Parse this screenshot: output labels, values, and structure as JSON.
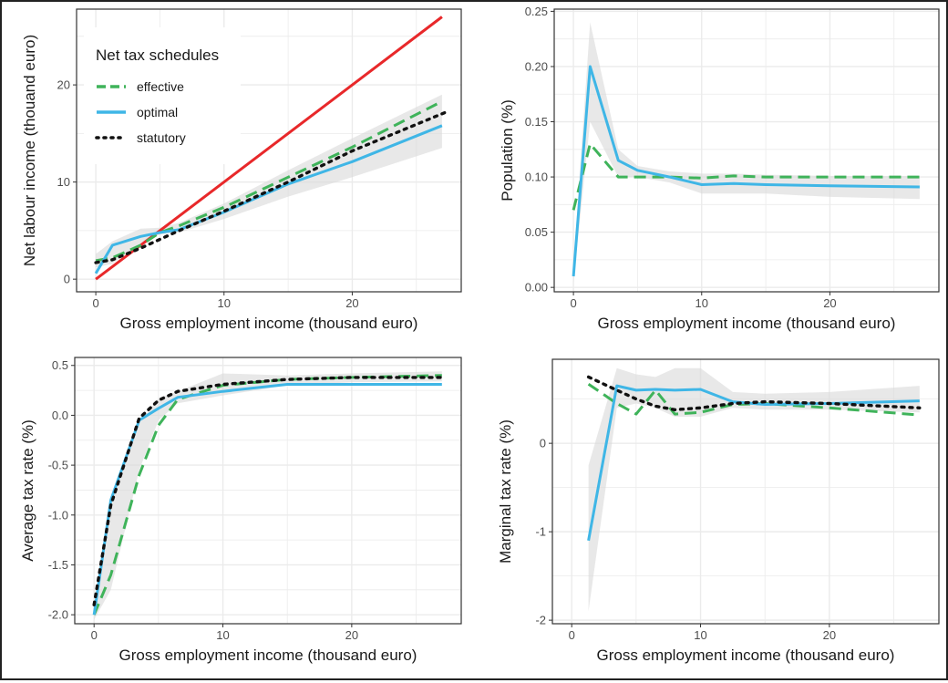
{
  "colors": {
    "effective": "#3fb35a",
    "optimal": "#3fb6e6",
    "statutory": "#111111",
    "reference": "#e8282a",
    "band": "#d9d9d9",
    "grid": "#ebebeb",
    "panel_border": "#333333"
  },
  "legend": {
    "title": "Net tax schedules",
    "items": [
      {
        "key": "effective",
        "label": "effective"
      },
      {
        "key": "optimal",
        "label": "optimal"
      },
      {
        "key": "statutory",
        "label": "statutory"
      }
    ]
  },
  "chart_data": [
    {
      "id": "net-income",
      "type": "line",
      "xlabel": "Gross employment income (thousand euro)",
      "ylabel": "Net labour income (thouand euro)",
      "xlim": [
        -1.5,
        28.5
      ],
      "ylim": [
        -1.3,
        27.8
      ],
      "xticks": [
        {
          "v": 0,
          "label": "0"
        },
        {
          "v": 10,
          "label": "10"
        },
        {
          "v": 20,
          "label": "20"
        }
      ],
      "yticks": [
        {
          "v": 0,
          "label": "0"
        },
        {
          "v": 10,
          "label": "10"
        },
        {
          "v": 20,
          "label": "20"
        }
      ],
      "legend": true,
      "series": [
        {
          "key": "reference",
          "style": "solid",
          "x": [
            0,
            27
          ],
          "y": [
            0,
            27
          ]
        },
        {
          "key": "effective",
          "style": "dashed",
          "x": [
            0,
            1.3,
            3.5,
            5,
            6.5,
            10,
            15,
            20,
            27
          ],
          "y": [
            1.9,
            2.2,
            3.5,
            4.8,
            5.5,
            7.4,
            10.5,
            13.6,
            18.3
          ]
        },
        {
          "key": "optimal",
          "style": "solid",
          "x": [
            0,
            1.3,
            3.5,
            5,
            6.5,
            10,
            15,
            20,
            27
          ],
          "y": [
            0.6,
            3.5,
            4.4,
            4.8,
            5.1,
            6.9,
            9.8,
            12.1,
            15.8
          ]
        },
        {
          "key": "statutory",
          "style": "dotted",
          "x": [
            0,
            1.3,
            3.5,
            5,
            6.5,
            10,
            15,
            20,
            27.5
          ],
          "y": [
            1.7,
            2.0,
            3.2,
            4.1,
            5.0,
            7.0,
            10.0,
            13.2,
            17.3
          ]
        }
      ],
      "band": {
        "x": [
          0,
          1.3,
          3.5,
          5,
          6.5,
          10,
          15,
          20,
          27
        ],
        "lower": [
          1.2,
          1.6,
          3.7,
          4.6,
          4.8,
          6.2,
          8.5,
          10.5,
          13.5
        ],
        "upper": [
          2.6,
          3.9,
          5.2,
          5.3,
          5.8,
          7.8,
          11.2,
          14.5,
          19.0
        ]
      }
    },
    {
      "id": "population",
      "type": "line",
      "xlabel": "Gross employment income (thousand euro)",
      "ylabel": "Population (%)",
      "xlim": [
        -1.5,
        28.5
      ],
      "ylim": [
        -0.004,
        0.252
      ],
      "xticks": [
        {
          "v": 0,
          "label": "0"
        },
        {
          "v": 10,
          "label": "10"
        },
        {
          "v": 20,
          "label": "20"
        }
      ],
      "yticks": [
        {
          "v": 0,
          "label": "0.00"
        },
        {
          "v": 0.05,
          "label": "0.05"
        },
        {
          "v": 0.1,
          "label": "0.10"
        },
        {
          "v": 0.15,
          "label": "0.15"
        },
        {
          "v": 0.2,
          "label": "0.20"
        },
        {
          "v": 0.25,
          "label": "0.25"
        }
      ],
      "legend": false,
      "series": [
        {
          "key": "effective",
          "style": "dashed",
          "x": [
            0,
            1.3,
            3.5,
            5,
            7.5,
            10,
            12.5,
            15,
            20,
            27
          ],
          "y": [
            0.07,
            0.13,
            0.1,
            0.1,
            0.1,
            0.099,
            0.101,
            0.1,
            0.1,
            0.1
          ]
        },
        {
          "key": "optimal",
          "style": "solid",
          "x": [
            0,
            1.3,
            3.5,
            5,
            7.5,
            10,
            12.5,
            15,
            20,
            27
          ],
          "y": [
            0.01,
            0.2,
            0.115,
            0.106,
            0.1,
            0.093,
            0.094,
            0.093,
            0.092,
            0.091
          ]
        }
      ],
      "band": {
        "x": [
          0,
          1.3,
          3.5,
          5,
          7.5,
          10,
          12.5,
          15,
          20,
          27
        ],
        "lower": [
          0.005,
          0.15,
          0.1,
          0.1,
          0.095,
          0.085,
          0.085,
          0.085,
          0.082,
          0.08
        ],
        "upper": [
          0.02,
          0.24,
          0.125,
          0.11,
          0.105,
          0.103,
          0.103,
          0.102,
          0.101,
          0.101
        ]
      }
    },
    {
      "id": "average-tax-rate",
      "type": "line",
      "xlabel": "Gross employment income (thousand euro)",
      "ylabel": "Average tax rate (%)",
      "xlim": [
        -1.5,
        28.5
      ],
      "ylim": [
        -2.09,
        0.58
      ],
      "xticks": [
        {
          "v": 0,
          "label": "0"
        },
        {
          "v": 10,
          "label": "10"
        },
        {
          "v": 20,
          "label": "20"
        }
      ],
      "yticks": [
        {
          "v": -2,
          "label": "-2.0"
        },
        {
          "v": -1.5,
          "label": "-1.5"
        },
        {
          "v": -1,
          "label": "-1.0"
        },
        {
          "v": -0.5,
          "label": "-0.5"
        },
        {
          "v": 0,
          "label": "0.0"
        },
        {
          "v": 0.5,
          "label": "0.5"
        }
      ],
      "legend": false,
      "series": [
        {
          "key": "effective",
          "style": "dashed",
          "x": [
            0,
            1.3,
            3.5,
            5,
            6.5,
            10,
            15,
            20,
            27
          ],
          "y": [
            -2.0,
            -1.6,
            -0.6,
            -0.1,
            0.16,
            0.3,
            0.36,
            0.38,
            0.4
          ]
        },
        {
          "key": "optimal",
          "style": "solid",
          "x": [
            0,
            1.3,
            3.5,
            5,
            6.5,
            10,
            15,
            20,
            27
          ],
          "y": [
            -2.0,
            -0.85,
            -0.05,
            0.07,
            0.18,
            0.24,
            0.31,
            0.31,
            0.31
          ]
        },
        {
          "key": "statutory",
          "style": "dotted",
          "x": [
            0,
            1.3,
            3.5,
            5,
            6.5,
            10,
            15,
            20,
            27
          ],
          "y": [
            -1.9,
            -0.9,
            -0.03,
            0.15,
            0.24,
            0.31,
            0.36,
            0.38,
            0.38
          ]
        }
      ],
      "band": {
        "x": [
          0,
          1.3,
          3.5,
          5,
          6.5,
          10,
          15,
          20,
          27
        ],
        "lower": [
          -2.05,
          -1.75,
          -0.55,
          -0.05,
          0.12,
          0.2,
          0.3,
          0.33,
          0.34
        ],
        "upper": [
          -1.95,
          -0.85,
          -0.08,
          0.17,
          0.24,
          0.42,
          0.4,
          0.42,
          0.44
        ]
      }
    },
    {
      "id": "marginal-tax-rate",
      "type": "line",
      "xlabel": "Gross employment income (thousand euro)",
      "ylabel": "Marginal tax rate (%)",
      "xlim": [
        -1.5,
        28.5
      ],
      "ylim": [
        -2.04,
        0.95
      ],
      "xticks": [
        {
          "v": 0,
          "label": "0"
        },
        {
          "v": 10,
          "label": "10"
        },
        {
          "v": 20,
          "label": "20"
        }
      ],
      "yticks": [
        {
          "v": -2,
          "label": "-2"
        },
        {
          "v": -1,
          "label": "-1"
        },
        {
          "v": 0,
          "label": "0"
        }
      ],
      "legend": false,
      "series": [
        {
          "key": "effective",
          "style": "dashed",
          "x": [
            1.3,
            3.5,
            5,
            6.5,
            8,
            10,
            12.5,
            15,
            20,
            27
          ],
          "y": [
            0.67,
            0.45,
            0.33,
            0.6,
            0.33,
            0.35,
            0.44,
            0.45,
            0.4,
            0.32
          ]
        },
        {
          "key": "optimal",
          "style": "solid",
          "x": [
            1.3,
            3.5,
            5,
            6.5,
            8,
            10,
            12.5,
            15,
            20,
            27
          ],
          "y": [
            -1.1,
            0.65,
            0.6,
            0.61,
            0.6,
            0.61,
            0.47,
            0.44,
            0.45,
            0.48
          ]
        },
        {
          "key": "statutory",
          "style": "dotted",
          "x": [
            1.3,
            3.5,
            5,
            6.5,
            8,
            10,
            12.5,
            15,
            20,
            27
          ],
          "y": [
            0.75,
            0.6,
            0.5,
            0.42,
            0.38,
            0.4,
            0.45,
            0.47,
            0.45,
            0.4
          ]
        }
      ],
      "band": {
        "x": [
          1.3,
          3.5,
          5,
          6.5,
          8,
          10,
          12.5,
          15,
          20,
          27
        ],
        "lower": [
          -1.9,
          0.4,
          0.45,
          0.4,
          0.3,
          0.3,
          0.4,
          0.38,
          0.38,
          0.35
        ],
        "upper": [
          -0.25,
          0.85,
          0.78,
          0.75,
          0.85,
          0.85,
          0.58,
          0.56,
          0.58,
          0.65
        ]
      }
    }
  ]
}
